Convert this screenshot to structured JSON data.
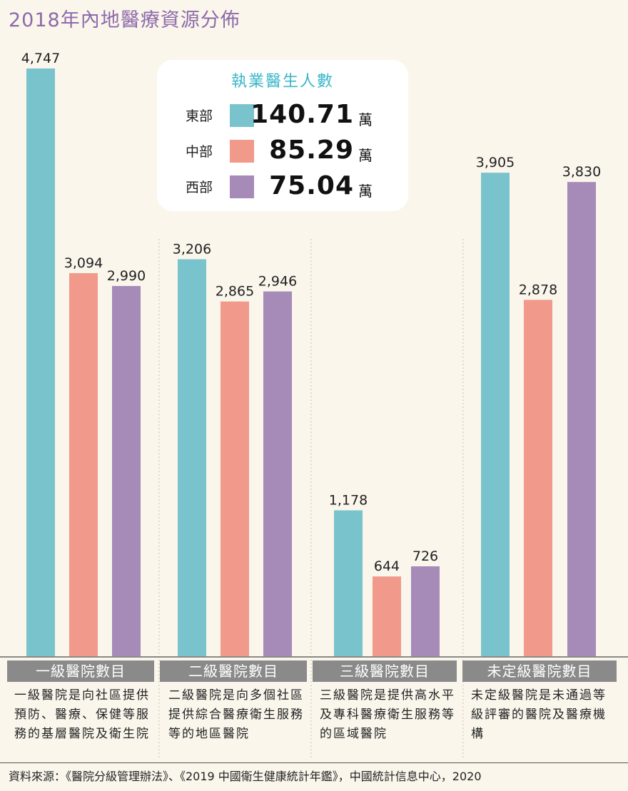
{
  "page": {
    "title": "2018年內地醫療資源分佈",
    "source": "資料來源：《醫院分級管理辦法》、《2019 中國衛生健康統計年鑑》，中國統計信息中心，2020"
  },
  "legend": {
    "title": "執業醫生人數",
    "unit": "萬",
    "items": [
      {
        "name": "東部",
        "value": "140.71",
        "color": "#79c3cd"
      },
      {
        "name": "中部",
        "value": "85.29",
        "color": "#f1998a"
      },
      {
        "name": "西部",
        "value": "75.04",
        "color": "#a68ab8"
      }
    ]
  },
  "groups": [
    {
      "header": "一級醫院數目",
      "description": "一級醫院是向社區提供預防、醫療、保健等服務的基層醫院及衛生院"
    },
    {
      "header": "二級醫院數目",
      "description": "二級醫院是向多個社區提供綜合醫療衛生服務等的地區醫院"
    },
    {
      "header": "三級醫院數目",
      "description": "三級醫院是提供高水平及專科醫療衛生服務等的區域醫院"
    },
    {
      "header": "未定級醫院數目",
      "description": "未定級醫院是未通過等級評審的醫院及醫療機構"
    }
  ],
  "chart_data": {
    "type": "bar",
    "title": "2018年內地醫療資源分佈",
    "categories": [
      "一級醫院數目",
      "二級醫院數目",
      "三級醫院數目",
      "未定級醫院數目"
    ],
    "series": [
      {
        "name": "東部",
        "color": "#79c3cd",
        "values": [
          4747,
          3206,
          1178,
          3905
        ],
        "labels": [
          "4,747",
          "3,206",
          "1,178",
          "3,905"
        ]
      },
      {
        "name": "中部",
        "color": "#f1998a",
        "values": [
          3094,
          2865,
          644,
          2878
        ],
        "labels": [
          "3,094",
          "2,865",
          "644",
          "2,878"
        ]
      },
      {
        "name": "西部",
        "color": "#a68ab8",
        "values": [
          2990,
          2946,
          726,
          3830
        ],
        "labels": [
          "2,990",
          "2,946",
          "726",
          "3,830"
        ]
      }
    ],
    "ylim": [
      0,
      4747
    ],
    "grid": false,
    "legend_placement": "top-center"
  }
}
